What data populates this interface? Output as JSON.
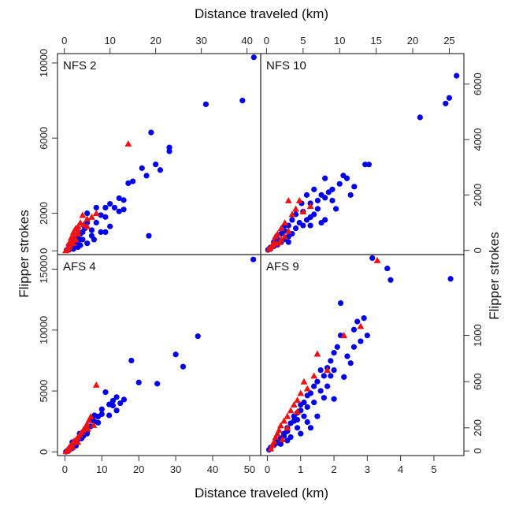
{
  "chart_data": {
    "type": "scatter",
    "axis_labels": {
      "top": "Distance traveled (km)",
      "bottom": "Distance traveled (km)",
      "left": "Flipper strokes",
      "right": "Flipper strokes"
    },
    "series_colors": {
      "circles": "#0000ee",
      "triangles": "#ee1111"
    },
    "frame_color": "#333333",
    "panels": [
      {
        "title": "NFS 2",
        "xlim": [
          -1.5,
          43
        ],
        "ylim": [
          -200,
          10500
        ],
        "xticks": [
          0,
          10,
          20,
          30,
          40
        ],
        "xticks_side": "top",
        "yticks": [
          0,
          2000,
          6000,
          10000
        ],
        "yticks_side": "left",
        "circles": [
          [
            41.5,
            10300
          ],
          [
            39,
            8000
          ],
          [
            31,
            7800
          ],
          [
            23,
            5500
          ],
          [
            23,
            5300
          ],
          [
            21,
            4300
          ],
          [
            20,
            4600
          ],
          [
            19,
            6300
          ],
          [
            18,
            4000
          ],
          [
            17,
            4400
          ],
          [
            15,
            3700
          ],
          [
            14,
            3600
          ],
          [
            13,
            2700
          ],
          [
            12,
            2800
          ],
          [
            11,
            2300
          ],
          [
            10,
            2500
          ],
          [
            9,
            2300
          ],
          [
            9,
            1800
          ],
          [
            8,
            1900
          ],
          [
            7,
            1500
          ],
          [
            7,
            2300
          ],
          [
            6,
            1100
          ],
          [
            5,
            1500
          ],
          [
            5,
            2000
          ],
          [
            4.5,
            1200
          ],
          [
            4,
            1000
          ],
          [
            4,
            600
          ],
          [
            3.5,
            900
          ],
          [
            3,
            700
          ],
          [
            3,
            500
          ],
          [
            2.5,
            400
          ],
          [
            2,
            300
          ],
          [
            2,
            600
          ],
          [
            1.5,
            200
          ],
          [
            1,
            100
          ],
          [
            1,
            300
          ],
          [
            0.5,
            50
          ],
          [
            18.5,
            800
          ],
          [
            6,
            800
          ],
          [
            5,
            400
          ],
          [
            3,
            200
          ],
          [
            2,
            100
          ],
          [
            1,
            50
          ],
          [
            8,
            1000
          ],
          [
            10,
            1300
          ],
          [
            12,
            2100
          ],
          [
            13,
            2200
          ],
          [
            9,
            1000
          ],
          [
            6.5,
            600
          ],
          [
            3.5,
            300
          ]
        ],
        "triangles": [
          [
            14,
            5700
          ],
          [
            7,
            2000
          ],
          [
            6,
            1800
          ],
          [
            5,
            1700
          ],
          [
            4,
            1900
          ],
          [
            3.5,
            1500
          ],
          [
            3,
            1300
          ],
          [
            2.5,
            1200
          ],
          [
            2,
            1000
          ],
          [
            2,
            800
          ],
          [
            1.5,
            700
          ],
          [
            1.5,
            500
          ],
          [
            1,
            400
          ],
          [
            1,
            200
          ],
          [
            0.8,
            100
          ],
          [
            0.5,
            50
          ],
          [
            0.3,
            20
          ],
          [
            3,
            900
          ],
          [
            2.5,
            600
          ],
          [
            2,
            400
          ],
          [
            1.2,
            300
          ],
          [
            4.2,
            1400
          ],
          [
            5,
            1300
          ],
          [
            3,
            1100
          ]
        ]
      },
      {
        "title": "NFS 10",
        "xlim": [
          -0.8,
          27
        ],
        "ylim": [
          -150,
          7100
        ],
        "xticks": [
          0,
          5,
          10,
          15,
          20,
          25
        ],
        "xticks_side": "top",
        "yticks": [
          0,
          2000,
          4000,
          6000
        ],
        "yticks_side": "right",
        "circles": [
          [
            26,
            6300
          ],
          [
            25,
            5500
          ],
          [
            24.5,
            5300
          ],
          [
            21,
            4800
          ],
          [
            14,
            3100
          ],
          [
            13.5,
            3100
          ],
          [
            11,
            2600
          ],
          [
            10.5,
            2700
          ],
          [
            10,
            2400
          ],
          [
            9,
            2200
          ],
          [
            9,
            1800
          ],
          [
            8.5,
            2100
          ],
          [
            8,
            1900
          ],
          [
            7.5,
            2000
          ],
          [
            7,
            1500
          ],
          [
            7,
            1800
          ],
          [
            6.5,
            1300
          ],
          [
            6,
            1700
          ],
          [
            6,
            1200
          ],
          [
            5.5,
            1100
          ],
          [
            5,
            900
          ],
          [
            5,
            1400
          ],
          [
            4.5,
            1000
          ],
          [
            4,
            800
          ],
          [
            4,
            1300
          ],
          [
            3.5,
            600
          ],
          [
            3.5,
            1100
          ],
          [
            3,
            500
          ],
          [
            3,
            900
          ],
          [
            2.5,
            400
          ],
          [
            2.5,
            700
          ],
          [
            2,
            300
          ],
          [
            2,
            600
          ],
          [
            1.5,
            200
          ],
          [
            1.5,
            400
          ],
          [
            1,
            150
          ],
          [
            1,
            300
          ],
          [
            0.5,
            50
          ],
          [
            0.5,
            100
          ],
          [
            0.2,
            20
          ],
          [
            8,
            1100
          ],
          [
            9.5,
            1500
          ],
          [
            11.5,
            2000
          ],
          [
            12,
            2300
          ],
          [
            6,
            900
          ],
          [
            4.8,
            1700
          ],
          [
            6.5,
            2200
          ],
          [
            5.5,
            2000
          ],
          [
            7.5,
            1000
          ],
          [
            3,
            300
          ],
          [
            2.5,
            900
          ],
          [
            8,
            2600
          ]
        ],
        "triangles": [
          [
            3,
            1800
          ],
          [
            4,
            1500
          ],
          [
            3.5,
            1300
          ],
          [
            2.5,
            1000
          ],
          [
            2,
            800
          ],
          [
            1.5,
            600
          ],
          [
            1.2,
            500
          ],
          [
            1,
            300
          ],
          [
            0.8,
            200
          ],
          [
            0.5,
            100
          ],
          [
            0.3,
            50
          ],
          [
            2,
            400
          ],
          [
            3,
            700
          ],
          [
            6,
            1600
          ],
          [
            5,
            1400
          ],
          [
            4.5,
            1800
          ],
          [
            1.8,
            300
          ],
          [
            2.5,
            500
          ],
          [
            0.7,
            150
          ],
          [
            1.4,
            250
          ]
        ]
      },
      {
        "title": "AFS 4",
        "xlim": [
          -2,
          53
        ],
        "ylim": [
          -300,
          16200
        ],
        "xticks": [
          0,
          10,
          20,
          30,
          40,
          50
        ],
        "xticks_side": "bottom",
        "yticks": [
          0,
          5000,
          10000,
          15000
        ],
        "yticks_side": "left",
        "circles": [
          [
            51,
            15800
          ],
          [
            36,
            9500
          ],
          [
            32,
            7000
          ],
          [
            30,
            8000
          ],
          [
            25,
            5600
          ],
          [
            20,
            5700
          ],
          [
            18,
            7500
          ],
          [
            16,
            4300
          ],
          [
            15,
            4000
          ],
          [
            14,
            4500
          ],
          [
            13,
            3800
          ],
          [
            12,
            3900
          ],
          [
            11,
            4900
          ],
          [
            10,
            3500
          ],
          [
            10,
            3100
          ],
          [
            9,
            2900
          ],
          [
            8,
            3000
          ],
          [
            8,
            2500
          ],
          [
            7,
            2600
          ],
          [
            7,
            2100
          ],
          [
            6,
            2000
          ],
          [
            6,
            1700
          ],
          [
            5,
            1600
          ],
          [
            5,
            1300
          ],
          [
            4,
            1200
          ],
          [
            4,
            1500
          ],
          [
            3.5,
            1000
          ],
          [
            3,
            900
          ],
          [
            3,
            700
          ],
          [
            2.5,
            600
          ],
          [
            2,
            500
          ],
          [
            2,
            300
          ],
          [
            1.5,
            400
          ],
          [
            1,
            200
          ],
          [
            1,
            100
          ],
          [
            0.5,
            50
          ],
          [
            0.3,
            20
          ],
          [
            12,
            3000
          ],
          [
            14,
            3400
          ],
          [
            9,
            2400
          ],
          [
            6,
            1500
          ],
          [
            4.5,
            1100
          ],
          [
            3,
            500
          ],
          [
            7.5,
            2800
          ],
          [
            5.5,
            1900
          ],
          [
            13,
            4200
          ],
          [
            2,
            800
          ]
        ],
        "triangles": [
          [
            8.5,
            5500
          ],
          [
            7,
            2900
          ],
          [
            6.5,
            2600
          ],
          [
            6,
            2300
          ],
          [
            5.5,
            2000
          ],
          [
            5,
            1800
          ],
          [
            4.5,
            1600
          ],
          [
            4,
            1400
          ],
          [
            3.5,
            1200
          ],
          [
            3,
            1000
          ],
          [
            2.5,
            900
          ],
          [
            2,
            700
          ],
          [
            1.5,
            500
          ],
          [
            1,
            300
          ],
          [
            0.8,
            200
          ],
          [
            0.5,
            100
          ],
          [
            0.3,
            50
          ],
          [
            7.8,
            2200
          ],
          [
            6.2,
            1900
          ],
          [
            3.5,
            800
          ],
          [
            2,
            400
          ],
          [
            1.2,
            250
          ]
        ]
      },
      {
        "title": "AFS 9",
        "xlim": [
          -0.2,
          5.9
        ],
        "ylim": [
          -40,
          1700
        ],
        "xticks": [
          0,
          1,
          2,
          3,
          4,
          5
        ],
        "xticks_side": "bottom",
        "yticks": [
          0,
          200,
          600,
          1000
        ],
        "yticks_side": "right",
        "circles": [
          [
            3.15,
            1670
          ],
          [
            3.6,
            1580
          ],
          [
            3.7,
            1480
          ],
          [
            5.5,
            1490
          ],
          [
            2.2,
            1280
          ],
          [
            2.9,
            1150
          ],
          [
            2.7,
            1120
          ],
          [
            2.6,
            1050
          ],
          [
            2.2,
            1000
          ],
          [
            2.1,
            900
          ],
          [
            2.0,
            850
          ],
          [
            1.9,
            780
          ],
          [
            1.8,
            720
          ],
          [
            1.7,
            650
          ],
          [
            1.6,
            700
          ],
          [
            1.5,
            600
          ],
          [
            1.4,
            560
          ],
          [
            1.3,
            500
          ],
          [
            1.2,
            480
          ],
          [
            1.1,
            420
          ],
          [
            1.0,
            400
          ],
          [
            1.0,
            350
          ],
          [
            0.9,
            330
          ],
          [
            0.8,
            300
          ],
          [
            0.8,
            260
          ],
          [
            0.7,
            240
          ],
          [
            0.6,
            200
          ],
          [
            0.6,
            170
          ],
          [
            0.5,
            150
          ],
          [
            0.5,
            130
          ],
          [
            0.4,
            110
          ],
          [
            0.3,
            90
          ],
          [
            0.3,
            70
          ],
          [
            0.2,
            50
          ],
          [
            0.1,
            30
          ],
          [
            0.05,
            10
          ],
          [
            2.8,
            950
          ],
          [
            2.4,
            820
          ],
          [
            2.0,
            700
          ],
          [
            1.6,
            520
          ],
          [
            1.2,
            380
          ],
          [
            0.9,
            270
          ],
          [
            1.0,
            150
          ],
          [
            1.3,
            200
          ],
          [
            1.5,
            300
          ],
          [
            2.0,
            450
          ],
          [
            2.6,
            900
          ],
          [
            3.0,
            1000
          ],
          [
            1.8,
            560
          ],
          [
            1.1,
            300
          ],
          [
            0.7,
            120
          ],
          [
            1.9,
            650
          ],
          [
            2.5,
            760
          ],
          [
            0.4,
            60
          ],
          [
            1.4,
            420
          ],
          [
            0.9,
            200
          ],
          [
            2.3,
            640
          ],
          [
            1.7,
            460
          ],
          [
            0.6,
            90
          ],
          [
            1.2,
            250
          ]
        ],
        "triangles": [
          [
            3.3,
            1650
          ],
          [
            2.8,
            1080
          ],
          [
            2.3,
            1000
          ],
          [
            1.5,
            840
          ],
          [
            1.4,
            650
          ],
          [
            1.2,
            540
          ],
          [
            1.0,
            500
          ],
          [
            0.9,
            440
          ],
          [
            0.8,
            400
          ],
          [
            0.7,
            350
          ],
          [
            0.6,
            300
          ],
          [
            0.5,
            260
          ],
          [
            0.4,
            220
          ],
          [
            0.3,
            150
          ],
          [
            0.25,
            120
          ],
          [
            0.2,
            80
          ],
          [
            0.15,
            50
          ],
          [
            0.1,
            20
          ],
          [
            1.8,
            700
          ],
          [
            1.1,
            600
          ],
          [
            0.6,
            200
          ],
          [
            0.45,
            100
          ],
          [
            0.35,
            180
          ],
          [
            0.9,
            340
          ]
        ]
      }
    ]
  }
}
